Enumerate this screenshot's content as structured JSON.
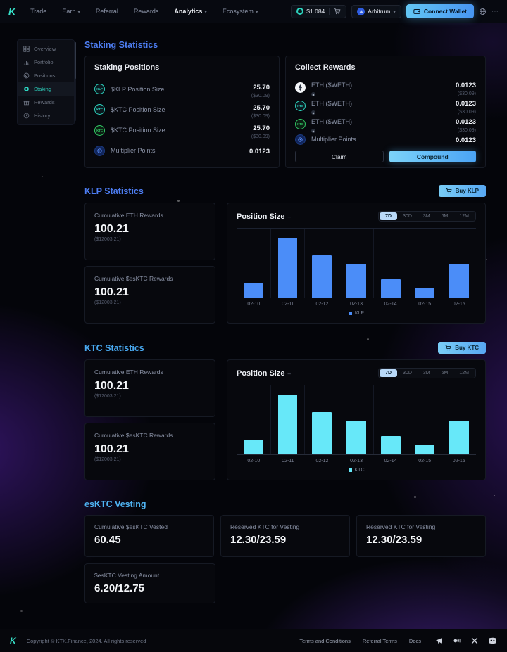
{
  "nav": {
    "logo": "K",
    "links": [
      {
        "label": "Trade"
      },
      {
        "label": "Earn"
      },
      {
        "label": "Referral"
      },
      {
        "label": "Rewards"
      },
      {
        "label": "Analytics"
      },
      {
        "label": "Ecosystem"
      }
    ],
    "price_pill": {
      "token": "KTC",
      "price": "$1.084"
    },
    "network": {
      "label": "Arbitrum"
    },
    "connect_wallet_label": "Connect Wallet"
  },
  "sidebar": {
    "items": [
      {
        "label": "Overview"
      },
      {
        "label": "Portfolio"
      },
      {
        "label": "Positions"
      },
      {
        "label": "Staking",
        "active": true
      },
      {
        "label": "Rewards"
      },
      {
        "label": "History"
      }
    ]
  },
  "staking": {
    "heading": "Staking Statistics",
    "positions": {
      "title": "Staking Positions",
      "rows": [
        {
          "icon": "klp",
          "icon_text": "KLP",
          "label": "$KLP Position Size",
          "value": "25.70",
          "sub": "($30.09)"
        },
        {
          "icon": "ktc",
          "icon_text": "KTC",
          "label": "$KTC Position Size",
          "value": "25.70",
          "sub": "($30.09)"
        },
        {
          "icon": "esktc",
          "icon_text": "KTC",
          "label": "$KTC Position Size",
          "value": "25.70",
          "sub": "($30.09)"
        },
        {
          "icon": "multiplier",
          "label": "Multiplier Points",
          "value": "0.0123",
          "sub": ""
        }
      ]
    },
    "rewards": {
      "title": "Collect Rewards",
      "rows": [
        {
          "icon": "eth",
          "label": "ETH ($WETH)",
          "value": "0.0123",
          "sub": "($30.09)"
        },
        {
          "icon": "ktc",
          "icon_text": "KTC",
          "label": "ETH ($WETH)",
          "value": "0.0123",
          "sub": "($30.09)"
        },
        {
          "icon": "esktc",
          "icon_text": "KTC",
          "label": "ETH ($WETH)",
          "value": "0.0123",
          "sub": "($30.09)"
        },
        {
          "icon": "multiplier",
          "label": "Multiplier Points",
          "value": "0.0123",
          "sub": ""
        }
      ],
      "claim_label": "Claim",
      "compound_label": "Compound"
    }
  },
  "klp": {
    "heading": "KLP Statistics",
    "buy_label": "Buy KLP",
    "cards": [
      {
        "label": "Cumulative ETH Rewards",
        "value": "100.21",
        "sub": "($12003.21)"
      },
      {
        "label": "Cumulative $esKTC Rewards",
        "value": "100.21",
        "sub": "($12003.21)"
      }
    ]
  },
  "ktc": {
    "heading": "KTC Statistics",
    "buy_label": "Buy KTC",
    "cards": [
      {
        "label": "Cumulative ETH Rewards",
        "value": "100.21",
        "sub": "($12003.21)"
      },
      {
        "label": "Cumulative $esKTC Rewards",
        "value": "100.21",
        "sub": "($12003.21)"
      }
    ]
  },
  "vesting": {
    "heading": "esKTC Vesting",
    "cards": [
      {
        "label": "Cumulative $esKTC Vested",
        "value": "60.45"
      },
      {
        "label": "Reserved KTC for Vesting",
        "value": "12.30/23.59"
      },
      {
        "label": "Reserved KTC for Vesting",
        "value": "12.30/23.59"
      },
      {
        "label": "$esKTC Vesting Amount",
        "value": "6.20/12.75"
      }
    ]
  },
  "footer": {
    "copyright": "Copyright © KTX.Finance, 2024. All rights reserved",
    "links": [
      "Terms and Conditions",
      "Referral Terms",
      "Docs"
    ],
    "icons": [
      "telegram",
      "medium",
      "x",
      "discord"
    ]
  },
  "chart_data": [
    {
      "type": "bar",
      "title": "Position Size",
      "categories": [
        "02-10",
        "02-11",
        "02-12",
        "02-13",
        "02-14",
        "02-15",
        "02-15"
      ],
      "series": [
        {
          "name": "KLP",
          "values": [
            20,
            87,
            61,
            49,
            27,
            14,
            49
          ]
        }
      ],
      "bar_color": "#4b8df8",
      "xlabel": "",
      "ylabel": "",
      "ylim": [
        0,
        100
      ],
      "grid": "vertical-only",
      "legend_position": "bottom",
      "ranges": [
        "7D",
        "30D",
        "3M",
        "6M",
        "12M"
      ],
      "active_range": "7D"
    },
    {
      "type": "bar",
      "title": "Position Size",
      "categories": [
        "02-10",
        "02-11",
        "02-12",
        "02-13",
        "02-14",
        "02-15",
        "02-15"
      ],
      "series": [
        {
          "name": "KTC",
          "values": [
            20,
            87,
            61,
            49,
            27,
            14,
            49
          ]
        }
      ],
      "bar_color": "#67e8f9",
      "xlabel": "",
      "ylabel": "",
      "ylim": [
        0,
        100
      ],
      "grid": "vertical-only",
      "legend_position": "bottom",
      "ranges": [
        "7D",
        "30D",
        "3M",
        "6M",
        "12M"
      ],
      "active_range": "7D"
    }
  ]
}
